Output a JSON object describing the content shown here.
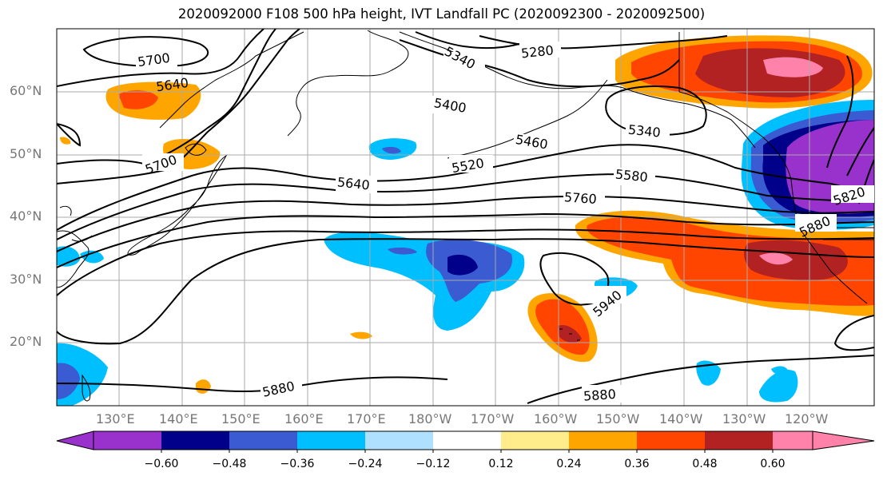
{
  "title": "2020092000 F108 500 hPa height, IVT Landfall PC (2020092300 - 2020092500)",
  "lat_labels": [
    "60°N",
    "50°N",
    "40°N",
    "30°N",
    "20°N"
  ],
  "lon_labels": [
    "130°E",
    "140°E",
    "150°E",
    "160°E",
    "170°E",
    "180°W",
    "170°W",
    "160°W",
    "150°W",
    "140°W",
    "130°W",
    "120°W"
  ],
  "colorbar": {
    "colors": [
      "#9932CC",
      "#00008B",
      "#3A5BD1",
      "#00BFFF",
      "#B0E0FF",
      "#FFFFFF",
      "#FFEC8B",
      "#FFA500",
      "#FF4500",
      "#B22222",
      "#FF82AB"
    ],
    "ticks": [
      "−0.60",
      "−0.48",
      "−0.36",
      "−0.24",
      "−0.12",
      "0.12",
      "0.24",
      "0.36",
      "0.48",
      "0.60"
    ]
  },
  "contour_labels": [
    "5700",
    "5640",
    "5700",
    "5340",
    "5280",
    "5400",
    "5340",
    "5460",
    "5520",
    "5580",
    "5640",
    "5760",
    "5820",
    "5880",
    "5940",
    "5880",
    "5880"
  ]
}
